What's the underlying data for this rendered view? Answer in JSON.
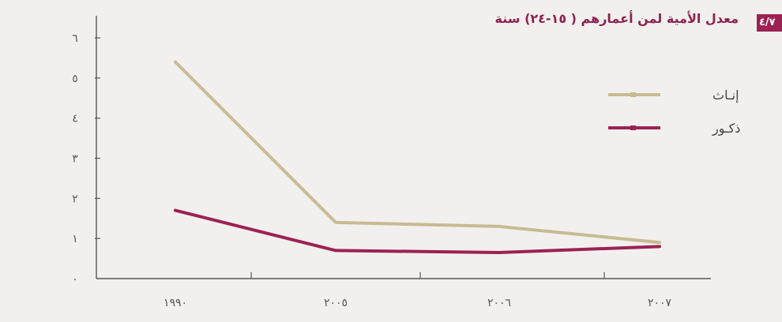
{
  "page": {
    "figure_number": "٤/٧",
    "title": "معدل الأمية لمن أعمارهم ( ١٥-٢٤) سنة"
  },
  "colors": {
    "female": "#c7bb93",
    "male": "#9c2254",
    "axis": "#555555",
    "tag_bg": "#9c2254",
    "title": "#8e2250"
  },
  "chart_data": {
    "type": "line",
    "title": "معدل الأمية لمن أعمارهم ( ١٥-٢٤) سنة",
    "categories": [
      "١٩٩٠",
      "٢٠٠٥",
      "٢٠٠٦",
      "٢٠٠٧"
    ],
    "x": [
      1990,
      2005,
      2006,
      2007
    ],
    "ylim": [
      0,
      6
    ],
    "yticks": [
      0,
      1,
      2,
      3,
      4,
      5,
      6
    ],
    "ytick_labels": [
      "٠",
      "١",
      "٢",
      "٣",
      "٤",
      "٥",
      "٦"
    ],
    "xlabel": "",
    "ylabel": "",
    "grid": false,
    "legend": "top-right",
    "series": [
      {
        "name": "إنـاث",
        "values": [
          5.4,
          1.4,
          1.3,
          0.9
        ]
      },
      {
        "name": "ذكـور",
        "values": [
          1.7,
          0.7,
          0.65,
          0.8
        ]
      }
    ]
  }
}
